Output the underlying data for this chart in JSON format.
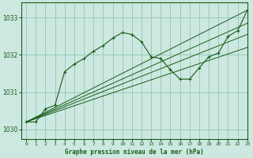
{
  "title": "Graphe pression niveau de la mer (hPa)",
  "background_color": "#cce8e0",
  "grid_color": "#99ccbb",
  "line_color": "#1a5c1a",
  "xlim": [
    -0.5,
    23
  ],
  "ylim": [
    1029.75,
    1033.4
  ],
  "yticks": [
    1030,
    1031,
    1032,
    1033
  ],
  "xticks": [
    0,
    1,
    2,
    3,
    4,
    5,
    6,
    7,
    8,
    9,
    10,
    11,
    12,
    13,
    14,
    15,
    16,
    17,
    18,
    19,
    20,
    21,
    22,
    23
  ],
  "straight_lines": [
    [
      [
        0,
        1030.2
      ],
      [
        23,
        1033.2
      ]
    ],
    [
      [
        0,
        1030.2
      ],
      [
        23,
        1032.85
      ]
    ],
    [
      [
        0,
        1030.2
      ],
      [
        23,
        1032.55
      ]
    ],
    [
      [
        0,
        1030.2
      ],
      [
        23,
        1032.2
      ]
    ]
  ],
  "main_x": [
    0,
    1,
    2,
    3,
    4,
    5,
    6,
    7,
    8,
    9,
    10,
    11,
    12,
    13,
    14,
    15,
    16,
    17,
    18,
    19,
    20,
    21,
    22,
    23
  ],
  "main_y": [
    1030.2,
    1030.2,
    1030.55,
    1030.65,
    1031.55,
    1031.75,
    1031.9,
    1032.1,
    1032.25,
    1032.45,
    1032.6,
    1032.55,
    1032.35,
    1031.95,
    1031.9,
    1031.6,
    1031.35,
    1031.35,
    1031.65,
    1031.95,
    1032.05,
    1032.5,
    1032.65,
    1033.2
  ]
}
